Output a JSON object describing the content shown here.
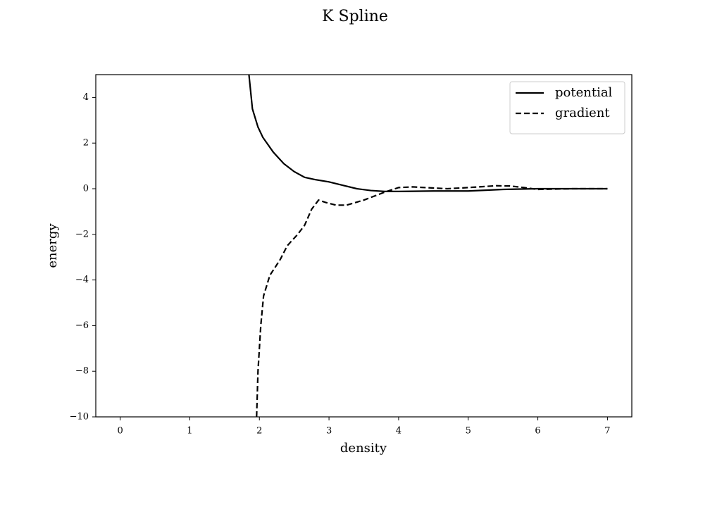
{
  "chart_data": {
    "type": "line",
    "title": "K Spline",
    "xlabel": "density",
    "ylabel": "energy",
    "xlim": [
      -0.35,
      7.35
    ],
    "ylim": [
      -10,
      5
    ],
    "xticks": [
      0,
      1,
      2,
      3,
      4,
      5,
      6,
      7
    ],
    "yticks": [
      {
        "value": -10,
        "label": "−10"
      },
      {
        "value": -8,
        "label": "−8"
      },
      {
        "value": -6,
        "label": "−6"
      },
      {
        "value": -4,
        "label": "−4"
      },
      {
        "value": -2,
        "label": "−2"
      },
      0,
      2,
      4
    ],
    "legend": "upper right",
    "grid": false,
    "series": [
      {
        "name": "potential",
        "color": "#000000",
        "linestyle": "solid",
        "x": [
          1.8,
          1.9,
          1.98,
          2.05,
          2.2,
          2.35,
          2.5,
          2.65,
          2.8,
          3.0,
          3.2,
          3.4,
          3.6,
          3.8,
          4.0,
          4.5,
          5.0,
          5.5,
          6.0,
          6.5,
          7.0
        ],
        "values": [
          6.5,
          3.5,
          2.7,
          2.25,
          1.6,
          1.1,
          0.75,
          0.5,
          0.4,
          0.3,
          0.15,
          0.0,
          -0.08,
          -0.12,
          -0.12,
          -0.1,
          -0.1,
          -0.03,
          0,
          0,
          0
        ]
      },
      {
        "name": "gradient",
        "color": "#000000",
        "linestyle": "dashed",
        "x": [
          1.96,
          1.98,
          2.02,
          2.06,
          2.15,
          2.3,
          2.4,
          2.55,
          2.65,
          2.75,
          2.85,
          2.95,
          3.1,
          3.25,
          3.5,
          3.8,
          4.0,
          4.2,
          4.5,
          4.7,
          5.0,
          5.4,
          5.6,
          5.8,
          6.0,
          6.5,
          7.0
        ],
        "values": [
          -10,
          -8,
          -6,
          -4.7,
          -3.8,
          -3.1,
          -2.5,
          -2.0,
          -1.6,
          -0.9,
          -0.5,
          -0.6,
          -0.72,
          -0.72,
          -0.5,
          -0.15,
          0.05,
          0.08,
          0.03,
          0.0,
          0.05,
          0.13,
          0.12,
          0.05,
          -0.03,
          0,
          0
        ]
      }
    ]
  }
}
